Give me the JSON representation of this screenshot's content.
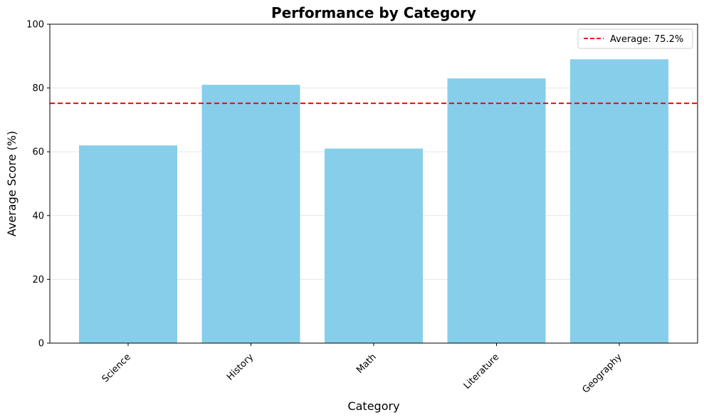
{
  "chart_data": {
    "type": "bar",
    "title": "Performance by Category",
    "xlabel": "Category",
    "ylabel": "Average Score (%)",
    "categories": [
      "Science",
      "History",
      "Math",
      "Literature",
      "Geography"
    ],
    "values": [
      62,
      81,
      61,
      83,
      89
    ],
    "ylim": [
      0,
      100
    ],
    "yticks": [
      "0",
      "20",
      "40",
      "60",
      "80",
      "100"
    ],
    "grid": "y",
    "bar_color": "#87CEEB",
    "reference_line": {
      "value": 75.2,
      "label": "Average: 75.2%",
      "color": "#FF0000",
      "style": "dashed"
    },
    "legend_position": "top-right"
  }
}
